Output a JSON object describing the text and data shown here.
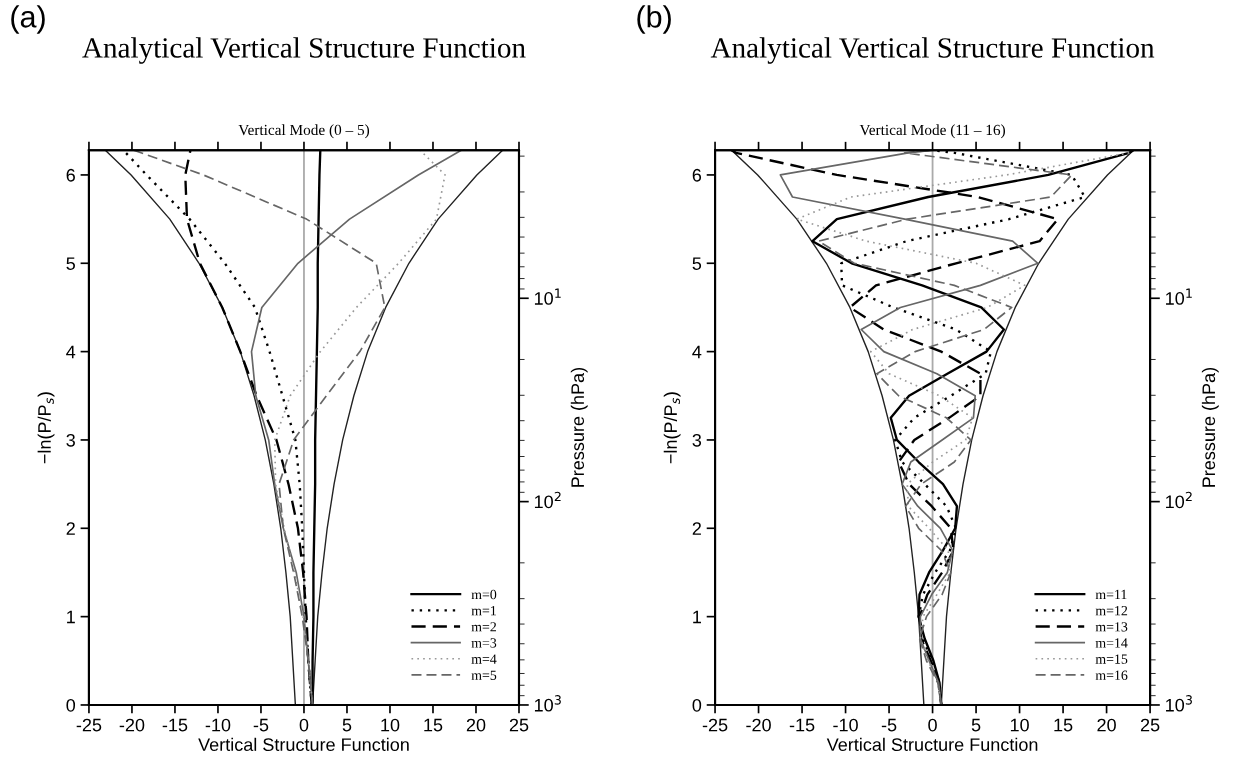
{
  "chart_data": [
    {
      "type": "line",
      "title": "Analytical Vertical Structure Function",
      "subtitle": "Vertical Mode (0 – 5)",
      "xlabel": "Vertical Structure Function",
      "ylabel": "−ln(P/P$_{s}$)",
      "y2label": "Pressure (hPa)",
      "annotations": [
        "(a)"
      ],
      "xlim": [
        -25,
        25
      ],
      "xticks": [
        -25,
        -20,
        -15,
        -10,
        -5,
        0,
        5,
        10,
        15,
        20,
        25
      ],
      "ylim": [
        0,
        6.28
      ],
      "yticks": [
        0,
        1,
        2,
        3,
        4,
        5,
        6
      ],
      "y2lim": [
        1000,
        1.87
      ],
      "y2ticks": [
        {
          "value": 1000,
          "label": "10$^{3}$"
        },
        {
          "value": 100,
          "label": "10$^{2}$"
        },
        {
          "value": 10,
          "label": "10$^{1}$"
        }
      ],
      "log": "y2",
      "ref_lines": [
        {
          "axis": "x",
          "value": 0,
          "color": "#aaaaaa"
        }
      ],
      "legend": "bottom right",
      "marker": "none",
      "series": [
        {
          "color": "#222222",
          "line_style": "solid",
          "x": [
            1.0,
            1.3,
            1.6,
            2.1,
            2.7,
            3.5,
            4.5,
            5.8,
            7.4,
            9.5,
            12.2,
            15.6,
            20.1,
            23.1
          ],
          "values": [
            0,
            0.5,
            1,
            1.5,
            2,
            2.5,
            3,
            3.5,
            4,
            4.5,
            5,
            5.5,
            6,
            6.28
          ]
        },
        {
          "color": "#222222",
          "line_style": "solid",
          "x": [
            -1.0,
            -1.3,
            -1.6,
            -2.1,
            -2.7,
            -3.5,
            -4.5,
            -5.8,
            -7.4,
            -9.5,
            -12.2,
            -15.6,
            -20.1,
            -23.1
          ],
          "values": [
            0,
            0.5,
            1,
            1.5,
            2,
            2.5,
            3,
            3.5,
            4,
            4.5,
            5,
            5.5,
            6,
            6.28
          ]
        },
        {
          "name": "m=0",
          "color": "#000000",
          "line_style": "solid",
          "x": [
            1.0,
            1.0,
            1.1,
            1.1,
            1.2,
            1.3,
            1.3,
            1.4,
            1.5,
            1.6,
            1.6,
            1.7,
            1.8,
            1.9
          ],
          "values": [
            0,
            0.5,
            1,
            1.5,
            2,
            2.5,
            3,
            3.5,
            4,
            4.5,
            5,
            5.5,
            6,
            6.28
          ]
        },
        {
          "name": "m=1",
          "color": "#000000",
          "line_style": "dotted",
          "x": [
            0.9,
            0.5,
            0.2,
            0.0,
            -0.2,
            -0.5,
            -1.0,
            -2.5,
            -4.0,
            -5.7,
            -9.2,
            -13.3,
            -18.3,
            -21.0
          ],
          "values": [
            0,
            0.5,
            1,
            1.5,
            2,
            2.5,
            3,
            3.5,
            4,
            4.5,
            5,
            5.5,
            6,
            6.28
          ]
        },
        {
          "name": "m=2",
          "color": "#000000",
          "line_style": "dashed",
          "x": [
            0.9,
            0.5,
            0.3,
            -0.1,
            -0.7,
            -1.8,
            -3.2,
            -5.5,
            -7.4,
            -9.5,
            -12.1,
            -13.6,
            -13.8,
            -13.2
          ],
          "values": [
            0,
            0.5,
            1,
            1.5,
            2,
            2.5,
            3,
            3.5,
            4,
            4.5,
            5,
            5.5,
            6,
            6.28
          ]
        },
        {
          "name": "m=3",
          "color": "#666666",
          "line_style": "solid",
          "x": [
            1.0,
            0.5,
            0.0,
            -0.9,
            -2.4,
            -3.4,
            -4.1,
            -5.6,
            -6.1,
            -4.9,
            -0.7,
            5.3,
            13.3,
            18.3
          ],
          "values": [
            0,
            0.5,
            1,
            1.5,
            2,
            2.5,
            3,
            3.5,
            4,
            4.5,
            5,
            5.5,
            6,
            6.28
          ]
        },
        {
          "name": "m=4",
          "color": "#999999",
          "line_style": "dotted",
          "x": [
            1.0,
            0.5,
            -0.1,
            -1.1,
            -2.3,
            -3.3,
            -3.4,
            -1.6,
            1.9,
            6.1,
            11.0,
            15.4,
            16.4,
            13.5
          ],
          "values": [
            0,
            0.5,
            1,
            1.5,
            2,
            2.5,
            3,
            3.5,
            4,
            4.5,
            5,
            5.5,
            6,
            6.28
          ]
        },
        {
          "name": "m=5",
          "color": "#666666",
          "line_style": "dashed",
          "x": [
            1.0,
            0.5,
            -0.2,
            -1.2,
            -2.4,
            -2.9,
            -1.2,
            2.6,
            6.5,
            9.4,
            8.4,
            0.3,
            -11.7,
            -19.8
          ],
          "values": [
            0,
            0.5,
            1,
            1.5,
            2,
            2.5,
            3,
            3.5,
            4,
            4.5,
            5,
            5.5,
            6,
            6.28
          ]
        }
      ]
    },
    {
      "type": "line",
      "title": "Analytical Vertical Structure Function",
      "subtitle": "Vertical Mode (11 – 16)",
      "xlabel": "Vertical Structure Function",
      "ylabel": "−ln(P/P$_{s}$)",
      "y2label": "Pressure (hPa)",
      "annotations": [
        "(b)"
      ],
      "xlim": [
        -25,
        25
      ],
      "xticks": [
        -25,
        -20,
        -15,
        -10,
        -5,
        0,
        5,
        10,
        15,
        20,
        25
      ],
      "ylim": [
        0,
        6.28
      ],
      "yticks": [
        0,
        1,
        2,
        3,
        4,
        5,
        6
      ],
      "y2lim": [
        1000,
        1.87
      ],
      "y2ticks": [
        {
          "value": 1000,
          "label": "10$^{3}$"
        },
        {
          "value": 100,
          "label": "10$^{2}$"
        },
        {
          "value": 10,
          "label": "10$^{1}$"
        }
      ],
      "log": "y2",
      "ref_lines": [
        {
          "axis": "x",
          "value": 0,
          "color": "#aaaaaa"
        }
      ],
      "legend": "bottom right",
      "marker": "none",
      "series": [
        {
          "color": "#222222",
          "line_style": "solid",
          "x": [
            1.0,
            1.3,
            1.6,
            2.1,
            2.7,
            3.5,
            4.5,
            5.8,
            7.4,
            9.5,
            12.2,
            15.6,
            20.1,
            23.1
          ],
          "values": [
            0,
            0.5,
            1,
            1.5,
            2,
            2.5,
            3,
            3.5,
            4,
            4.5,
            5,
            5.5,
            6,
            6.28
          ]
        },
        {
          "color": "#222222",
          "line_style": "solid",
          "x": [
            -1.0,
            -1.3,
            -1.6,
            -2.1,
            -2.7,
            -3.5,
            -4.5,
            -5.8,
            -7.4,
            -9.5,
            -12.2,
            -15.6,
            -20.1,
            -23.1
          ],
          "values": [
            0,
            0.5,
            1,
            1.5,
            2,
            2.5,
            3,
            3.5,
            4,
            4.5,
            5,
            5.5,
            6,
            6.28
          ]
        },
        {
          "name": "m=11",
          "color": "#000000",
          "line_style": "solid",
          "x": [
            1.0,
            0.8,
            0.1,
            -0.9,
            -1.6,
            -1.5,
            -0.4,
            1.2,
            2.6,
            2.8,
            1.2,
            -1.6,
            -4.1,
            -4.8,
            -2.7,
            1.7,
            6.2,
            8.2,
            5.6,
            -1.2,
            -9.3,
            -13.8,
            -11.0,
            -0.5,
            13.3,
            22.6,
            23.1
          ],
          "values": [
            0,
            0.25,
            0.5,
            0.75,
            1,
            1.25,
            1.5,
            1.75,
            2,
            2.25,
            2.5,
            2.75,
            3,
            3.25,
            3.5,
            3.75,
            4,
            4.25,
            4.5,
            4.75,
            5,
            5.25,
            5.5,
            5.75,
            6,
            6.25,
            6.28
          ]
        },
        {
          "name": "m=12",
          "color": "#000000",
          "line_style": "dotted",
          "x": [
            1.0,
            0.8,
            -0.1,
            -1.1,
            -1.6,
            -1.1,
            0.3,
            2.0,
            2.7,
            1.6,
            -0.9,
            -3.5,
            -4.3,
            -2.1,
            2.1,
            6.1,
            6.7,
            2.7,
            -4.5,
            -10.4,
            -10.5,
            -3.0,
            8.8,
            17.5,
            16.0,
            2.5,
            0.0
          ],
          "values": [
            0,
            0.25,
            0.5,
            0.75,
            1,
            1.25,
            1.5,
            1.75,
            2,
            2.25,
            2.5,
            2.75,
            3,
            3.25,
            3.5,
            3.75,
            4,
            4.25,
            4.5,
            4.75,
            5,
            5.25,
            5.5,
            5.75,
            6,
            6.25,
            6.28
          ]
        },
        {
          "name": "m=13",
          "color": "#000000",
          "line_style": "dashed",
          "x": [
            1.0,
            0.7,
            -0.2,
            -1.3,
            -1.5,
            -0.6,
            1.1,
            2.4,
            2.1,
            -0.1,
            -2.7,
            -3.9,
            -2.1,
            1.9,
            5.5,
            5.5,
            1.0,
            -5.6,
            -9.5,
            -6.5,
            2.7,
            12.3,
            14.4,
            5.2,
            -11.0,
            -22.6,
            -23.1
          ],
          "values": [
            0,
            0.25,
            0.5,
            0.75,
            1,
            1.25,
            1.5,
            1.75,
            2,
            2.25,
            2.5,
            2.75,
            3,
            3.25,
            3.5,
            3.75,
            4,
            4.25,
            4.5,
            4.75,
            5,
            5.25,
            5.5,
            5.75,
            6,
            6.25,
            6.28
          ]
        },
        {
          "name": "m=14",
          "color": "#666666",
          "line_style": "solid",
          "x": [
            1.0,
            0.7,
            -0.4,
            -1.4,
            -1.4,
            -0.1,
            1.7,
            2.3,
            0.9,
            -1.7,
            -3.5,
            -2.5,
            1.1,
            4.7,
            4.9,
            0.5,
            -5.6,
            -8.2,
            -3.7,
            5.5,
            12.1,
            9.2,
            -3.2,
            -16.1,
            -17.5,
            -2.8,
            0.0
          ],
          "values": [
            0,
            0.25,
            0.5,
            0.75,
            1,
            1.25,
            1.5,
            1.75,
            2,
            2.25,
            2.5,
            2.75,
            3,
            3.25,
            3.5,
            3.75,
            4,
            4.25,
            4.5,
            4.75,
            5,
            5.25,
            5.5,
            5.75,
            6,
            6.25,
            6.28
          ]
        },
        {
          "name": "m=15",
          "color": "#999999",
          "line_style": "dotted",
          "x": [
            1.0,
            0.6,
            -0.5,
            -1.4,
            -1.1,
            0.5,
            2.0,
            1.8,
            -0.4,
            -2.8,
            -2.9,
            0.0,
            3.8,
            4.6,
            0.8,
            -5.0,
            -7.1,
            -2.3,
            6.3,
            10.6,
            5.0,
            -7.6,
            -15.6,
            -9.4,
            8.5,
            22.6,
            23.1
          ],
          "values": [
            0,
            0.25,
            0.5,
            0.75,
            1,
            1.25,
            1.5,
            1.75,
            2,
            2.25,
            2.5,
            2.75,
            3,
            3.25,
            3.5,
            3.75,
            4,
            4.25,
            4.5,
            4.75,
            5,
            5.25,
            5.5,
            5.75,
            6,
            6.25,
            6.28
          ]
        },
        {
          "name": "m=16",
          "color": "#666666",
          "line_style": "dashed",
          "x": [
            1.0,
            0.6,
            -0.7,
            -1.5,
            -0.7,
            1.1,
            2.1,
            1.0,
            -1.6,
            -3.1,
            -1.3,
            2.5,
            4.4,
            1.6,
            -3.9,
            -6.4,
            -2.0,
            5.9,
            9.1,
            2.5,
            -9.0,
            -13.1,
            -2.9,
            13.6,
            16.0,
            -3.2,
            0.0
          ],
          "values": [
            0,
            0.25,
            0.5,
            0.75,
            1,
            1.25,
            1.5,
            1.75,
            2,
            2.25,
            2.5,
            2.75,
            3,
            3.25,
            3.5,
            3.75,
            4,
            4.25,
            4.5,
            4.75,
            5,
            5.25,
            5.5,
            5.75,
            6,
            6.25,
            6.28
          ]
        }
      ]
    }
  ]
}
